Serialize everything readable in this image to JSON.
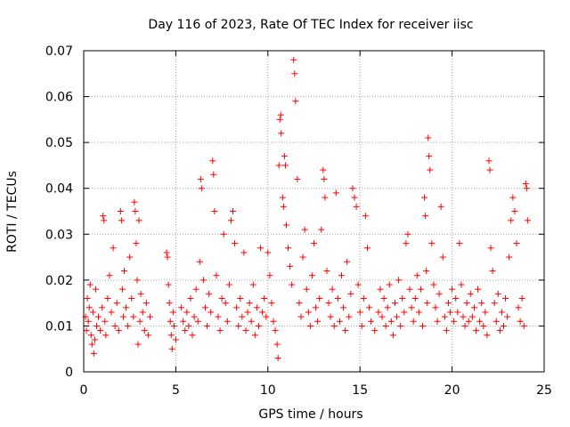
{
  "chart_data": {
    "type": "scatter",
    "title": "Day 116 of 2023, Rate Of TEC Index for receiver iisc",
    "xlabel": "GPS time / hours",
    "ylabel": "ROTI / TECUs",
    "xlim": [
      0,
      25
    ],
    "ylim": [
      0,
      0.07
    ],
    "xticks": [
      0,
      5,
      10,
      15,
      20,
      25
    ],
    "xtick_labels": [
      "0",
      "5",
      "10",
      "15",
      "20",
      "25"
    ],
    "yticks": [
      0,
      0.01,
      0.02,
      0.03,
      0.04,
      0.05,
      0.06,
      0.07
    ],
    "ytick_labels": [
      "0",
      "0.01",
      "0.02",
      "0.03",
      "0.04",
      "0.05",
      "0.06",
      "0.07"
    ],
    "grid": true,
    "marker": "+",
    "color": "#ff0000",
    "points": [
      [
        0.1,
        0.012
      ],
      [
        0.15,
        0.009
      ],
      [
        0.2,
        0.016
      ],
      [
        0.25,
        0.011
      ],
      [
        0.3,
        0.014
      ],
      [
        0.35,
        0.019
      ],
      [
        0.4,
        0.008
      ],
      [
        0.45,
        0.006
      ],
      [
        0.5,
        0.013
      ],
      [
        0.55,
        0.004
      ],
      [
        0.6,
        0.007
      ],
      [
        0.65,
        0.018
      ],
      [
        0.7,
        0.01
      ],
      [
        0.8,
        0.012
      ],
      [
        0.9,
        0.009
      ],
      [
        1.0,
        0.014
      ],
      [
        1.05,
        0.034
      ],
      [
        1.1,
        0.033
      ],
      [
        1.15,
        0.011
      ],
      [
        1.2,
        0.008
      ],
      [
        1.3,
        0.016
      ],
      [
        1.4,
        0.021
      ],
      [
        1.5,
        0.013
      ],
      [
        1.6,
        0.027
      ],
      [
        1.7,
        0.01
      ],
      [
        1.8,
        0.015
      ],
      [
        1.9,
        0.009
      ],
      [
        2.0,
        0.035
      ],
      [
        2.05,
        0.033
      ],
      [
        2.1,
        0.018
      ],
      [
        2.15,
        0.012
      ],
      [
        2.2,
        0.022
      ],
      [
        2.3,
        0.014
      ],
      [
        2.4,
        0.01
      ],
      [
        2.5,
        0.025
      ],
      [
        2.6,
        0.016
      ],
      [
        2.7,
        0.012
      ],
      [
        2.75,
        0.037
      ],
      [
        2.8,
        0.035
      ],
      [
        2.85,
        0.028
      ],
      [
        2.9,
        0.02
      ],
      [
        2.95,
        0.006
      ],
      [
        3.0,
        0.033
      ],
      [
        3.05,
        0.011
      ],
      [
        3.1,
        0.017
      ],
      [
        3.2,
        0.013
      ],
      [
        3.3,
        0.009
      ],
      [
        3.4,
        0.015
      ],
      [
        3.5,
        0.008
      ],
      [
        3.6,
        0.012
      ],
      [
        4.5,
        0.026
      ],
      [
        4.55,
        0.025
      ],
      [
        4.6,
        0.019
      ],
      [
        4.65,
        0.015
      ],
      [
        4.7,
        0.011
      ],
      [
        4.75,
        0.008
      ],
      [
        4.8,
        0.005
      ],
      [
        4.85,
        0.013
      ],
      [
        4.9,
        0.01
      ],
      [
        5.0,
        0.007
      ],
      [
        5.3,
        0.014
      ],
      [
        5.4,
        0.011
      ],
      [
        5.5,
        0.009
      ],
      [
        5.6,
        0.013
      ],
      [
        5.7,
        0.01
      ],
      [
        5.8,
        0.016
      ],
      [
        5.9,
        0.008
      ],
      [
        6.0,
        0.012
      ],
      [
        6.1,
        0.018
      ],
      [
        6.2,
        0.011
      ],
      [
        6.3,
        0.024
      ],
      [
        6.35,
        0.042
      ],
      [
        6.4,
        0.04
      ],
      [
        6.5,
        0.02
      ],
      [
        6.6,
        0.014
      ],
      [
        6.7,
        0.01
      ],
      [
        6.8,
        0.017
      ],
      [
        6.9,
        0.013
      ],
      [
        7.0,
        0.046
      ],
      [
        7.05,
        0.043
      ],
      [
        7.1,
        0.035
      ],
      [
        7.2,
        0.021
      ],
      [
        7.3,
        0.012
      ],
      [
        7.4,
        0.009
      ],
      [
        7.5,
        0.016
      ],
      [
        7.6,
        0.03
      ],
      [
        7.7,
        0.015
      ],
      [
        7.8,
        0.011
      ],
      [
        7.9,
        0.019
      ],
      [
        8.0,
        0.033
      ],
      [
        8.1,
        0.035
      ],
      [
        8.2,
        0.028
      ],
      [
        8.3,
        0.014
      ],
      [
        8.4,
        0.01
      ],
      [
        8.5,
        0.016
      ],
      [
        8.6,
        0.012
      ],
      [
        8.7,
        0.026
      ],
      [
        8.8,
        0.009
      ],
      [
        8.9,
        0.013
      ],
      [
        9.0,
        0.015
      ],
      [
        9.1,
        0.011
      ],
      [
        9.2,
        0.019
      ],
      [
        9.3,
        0.008
      ],
      [
        9.4,
        0.014
      ],
      [
        9.5,
        0.01
      ],
      [
        9.6,
        0.027
      ],
      [
        9.7,
        0.013
      ],
      [
        9.8,
        0.016
      ],
      [
        9.9,
        0.012
      ],
      [
        10.0,
        0.026
      ],
      [
        10.1,
        0.021
      ],
      [
        10.2,
        0.015
      ],
      [
        10.3,
        0.011
      ],
      [
        10.4,
        0.009
      ],
      [
        10.5,
        0.006
      ],
      [
        10.55,
        0.003
      ],
      [
        10.6,
        0.045
      ],
      [
        10.65,
        0.055
      ],
      [
        10.7,
        0.056
      ],
      [
        10.72,
        0.052
      ],
      [
        10.8,
        0.038
      ],
      [
        10.85,
        0.036
      ],
      [
        10.9,
        0.047
      ],
      [
        10.95,
        0.045
      ],
      [
        11.0,
        0.032
      ],
      [
        11.1,
        0.027
      ],
      [
        11.2,
        0.023
      ],
      [
        11.3,
        0.019
      ],
      [
        11.4,
        0.068
      ],
      [
        11.45,
        0.065
      ],
      [
        11.5,
        0.059
      ],
      [
        11.6,
        0.042
      ],
      [
        11.7,
        0.015
      ],
      [
        11.8,
        0.012
      ],
      [
        11.9,
        0.025
      ],
      [
        12.0,
        0.031
      ],
      [
        12.1,
        0.018
      ],
      [
        12.2,
        0.013
      ],
      [
        12.3,
        0.01
      ],
      [
        12.4,
        0.021
      ],
      [
        12.5,
        0.028
      ],
      [
        12.6,
        0.014
      ],
      [
        12.7,
        0.011
      ],
      [
        12.8,
        0.016
      ],
      [
        12.9,
        0.031
      ],
      [
        13.0,
        0.044
      ],
      [
        13.05,
        0.042
      ],
      [
        13.1,
        0.038
      ],
      [
        13.2,
        0.022
      ],
      [
        13.3,
        0.015
      ],
      [
        13.4,
        0.012
      ],
      [
        13.5,
        0.018
      ],
      [
        13.6,
        0.01
      ],
      [
        13.7,
        0.039
      ],
      [
        13.8,
        0.016
      ],
      [
        13.9,
        0.011
      ],
      [
        14.0,
        0.021
      ],
      [
        14.1,
        0.014
      ],
      [
        14.2,
        0.009
      ],
      [
        14.3,
        0.024
      ],
      [
        14.4,
        0.012
      ],
      [
        14.5,
        0.017
      ],
      [
        14.6,
        0.04
      ],
      [
        14.7,
        0.038
      ],
      [
        14.8,
        0.036
      ],
      [
        14.9,
        0.019
      ],
      [
        15.0,
        0.013
      ],
      [
        15.1,
        0.01
      ],
      [
        15.2,
        0.016
      ],
      [
        15.3,
        0.034
      ],
      [
        15.4,
        0.027
      ],
      [
        15.5,
        0.014
      ],
      [
        15.6,
        0.011
      ],
      [
        15.8,
        0.009
      ],
      [
        16.0,
        0.013
      ],
      [
        16.1,
        0.018
      ],
      [
        16.2,
        0.012
      ],
      [
        16.3,
        0.016
      ],
      [
        16.4,
        0.01
      ],
      [
        16.5,
        0.014
      ],
      [
        16.6,
        0.019
      ],
      [
        16.7,
        0.011
      ],
      [
        16.8,
        0.008
      ],
      [
        16.9,
        0.015
      ],
      [
        17.0,
        0.012
      ],
      [
        17.1,
        0.02
      ],
      [
        17.2,
        0.01
      ],
      [
        17.3,
        0.016
      ],
      [
        17.4,
        0.013
      ],
      [
        17.5,
        0.028
      ],
      [
        17.6,
        0.03
      ],
      [
        17.7,
        0.018
      ],
      [
        17.8,
        0.014
      ],
      [
        17.9,
        0.011
      ],
      [
        18.0,
        0.016
      ],
      [
        18.1,
        0.021
      ],
      [
        18.2,
        0.013
      ],
      [
        18.3,
        0.018
      ],
      [
        18.4,
        0.01
      ],
      [
        18.5,
        0.038
      ],
      [
        18.55,
        0.034
      ],
      [
        18.6,
        0.022
      ],
      [
        18.65,
        0.015
      ],
      [
        18.7,
        0.051
      ],
      [
        18.75,
        0.047
      ],
      [
        18.8,
        0.044
      ],
      [
        18.9,
        0.028
      ],
      [
        19.0,
        0.019
      ],
      [
        19.1,
        0.014
      ],
      [
        19.2,
        0.011
      ],
      [
        19.3,
        0.017
      ],
      [
        19.4,
        0.036
      ],
      [
        19.5,
        0.025
      ],
      [
        19.6,
        0.012
      ],
      [
        19.7,
        0.009
      ],
      [
        19.8,
        0.015
      ],
      [
        19.9,
        0.013
      ],
      [
        20.0,
        0.018
      ],
      [
        20.1,
        0.011
      ],
      [
        20.2,
        0.016
      ],
      [
        20.3,
        0.013
      ],
      [
        20.4,
        0.028
      ],
      [
        20.5,
        0.019
      ],
      [
        20.6,
        0.012
      ],
      [
        20.7,
        0.01
      ],
      [
        20.8,
        0.015
      ],
      [
        20.9,
        0.011
      ],
      [
        21.0,
        0.017
      ],
      [
        21.1,
        0.012
      ],
      [
        21.2,
        0.014
      ],
      [
        21.3,
        0.009
      ],
      [
        21.4,
        0.018
      ],
      [
        21.5,
        0.011
      ],
      [
        21.6,
        0.015
      ],
      [
        21.7,
        0.01
      ],
      [
        21.8,
        0.013
      ],
      [
        21.9,
        0.008
      ],
      [
        22.0,
        0.046
      ],
      [
        22.05,
        0.044
      ],
      [
        22.1,
        0.027
      ],
      [
        22.2,
        0.022
      ],
      [
        22.3,
        0.015
      ],
      [
        22.4,
        0.011
      ],
      [
        22.5,
        0.017
      ],
      [
        22.6,
        0.009
      ],
      [
        22.7,
        0.013
      ],
      [
        22.8,
        0.01
      ],
      [
        22.9,
        0.016
      ],
      [
        23.0,
        0.012
      ],
      [
        23.1,
        0.025
      ],
      [
        23.2,
        0.033
      ],
      [
        23.3,
        0.038
      ],
      [
        23.4,
        0.035
      ],
      [
        23.5,
        0.028
      ],
      [
        23.6,
        0.014
      ],
      [
        23.7,
        0.011
      ],
      [
        23.8,
        0.016
      ],
      [
        23.9,
        0.01
      ],
      [
        24.0,
        0.041
      ],
      [
        24.05,
        0.04
      ],
      [
        24.1,
        0.033
      ]
    ]
  }
}
